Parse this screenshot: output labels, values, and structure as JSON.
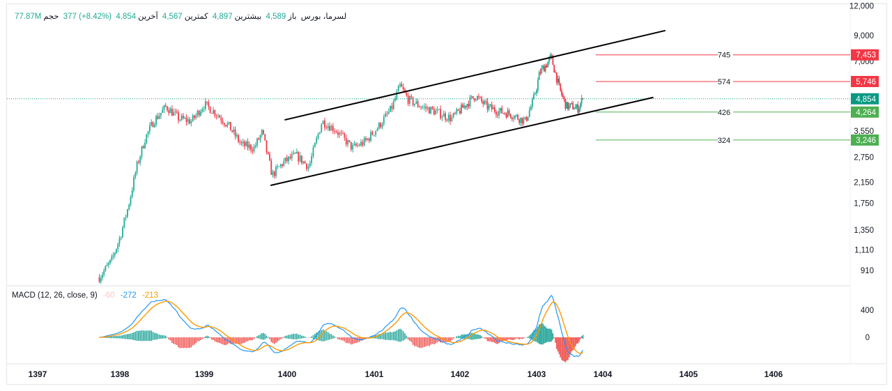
{
  "header": {
    "symbol": "لسرما، بورس",
    "open_label": "باز",
    "open": "4,589",
    "high_label": "بیشترین",
    "high": "4,897",
    "low_label": "کمترین",
    "low": "4,567",
    "last_label": "آخرین",
    "last": "4,854",
    "change": "377 (+8.42%)",
    "volume_label": "حجم",
    "volume": "77.87M"
  },
  "macd": {
    "label": "MACD (12, 26, close, 9)",
    "histogram": "-60",
    "macd": "-272",
    "signal": "-213",
    "ticks": [
      "400",
      "0"
    ]
  },
  "colors": {
    "up": "#22ab94",
    "down": "#f23645",
    "macd": "#2196f3",
    "signal": "#ff9800",
    "resistance": "#f23645",
    "support": "#4caf50",
    "last": "#089981"
  },
  "chart_data": {
    "type": "candlestick",
    "y_scale": "log",
    "y_ticks": [
      "12,000",
      "9,000",
      "7,000",
      "3,550",
      "2,750",
      "2,150",
      "1,750",
      "1,350",
      "1,110",
      "910"
    ],
    "x_ticks": [
      "1397",
      "1398",
      "1399",
      "1400",
      "1401",
      "1402",
      "1403",
      "1404",
      "1405",
      "1406"
    ],
    "price_path": [
      [
        1397.75,
        850
      ],
      [
        1397.9,
        1000
      ],
      [
        1398.0,
        1250
      ],
      [
        1398.1,
        1700
      ],
      [
        1398.2,
        2500
      ],
      [
        1398.3,
        3300
      ],
      [
        1398.4,
        3900
      ],
      [
        1398.55,
        4500
      ],
      [
        1398.7,
        4000
      ],
      [
        1398.85,
        3900
      ],
      [
        1399.0,
        4600
      ],
      [
        1399.15,
        4200
      ],
      [
        1399.3,
        3700
      ],
      [
        1399.45,
        3100
      ],
      [
        1399.6,
        3000
      ],
      [
        1399.7,
        3500
      ],
      [
        1399.82,
        2300
      ],
      [
        1399.95,
        2600
      ],
      [
        1400.1,
        2800
      ],
      [
        1400.25,
        2500
      ],
      [
        1400.4,
        3900
      ],
      [
        1400.55,
        3600
      ],
      [
        1400.75,
        3000
      ],
      [
        1400.9,
        3200
      ],
      [
        1401.05,
        3700
      ],
      [
        1401.2,
        4400
      ],
      [
        1401.3,
        5500
      ],
      [
        1401.4,
        4800
      ],
      [
        1401.55,
        4500
      ],
      [
        1401.7,
        4300
      ],
      [
        1401.9,
        4000
      ],
      [
        1402.05,
        4500
      ],
      [
        1402.2,
        5000
      ],
      [
        1402.35,
        4500
      ],
      [
        1402.5,
        4300
      ],
      [
        1402.65,
        4200
      ],
      [
        1402.85,
        3900
      ],
      [
        1402.95,
        4700
      ],
      [
        1403.05,
        6300
      ],
      [
        1403.15,
        6800
      ],
      [
        1403.22,
        7300
      ],
      [
        1403.35,
        5300
      ],
      [
        1403.45,
        4500
      ],
      [
        1403.55,
        4500
      ],
      [
        1403.62,
        4400
      ],
      [
        1403.7,
        4854
      ]
    ],
    "trendlines": [
      {
        "from": [
          1399.97,
          3950
        ],
        "to": [
          1404.73,
          9450
        ]
      },
      {
        "from": [
          1399.8,
          2085
        ],
        "to": [
          1404.59,
          4920
        ]
      }
    ],
    "levels": [
      {
        "label": "745",
        "price": 7453,
        "tag": "7,453",
        "kind": "resistance"
      },
      {
        "label": "574",
        "price": 5746,
        "tag": "5,746",
        "kind": "resistance"
      },
      {
        "label": "426",
        "price": 4264,
        "tag": "4,264",
        "kind": "support"
      },
      {
        "label": "324",
        "price": 3246,
        "tag": "3,246",
        "kind": "support"
      }
    ],
    "last_price": {
      "price": 4854,
      "tag": "4,854"
    }
  }
}
